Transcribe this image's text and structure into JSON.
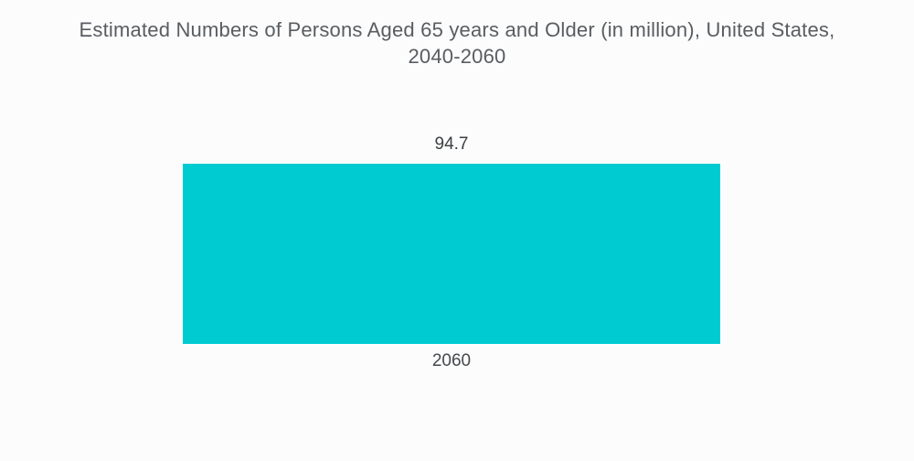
{
  "page": {
    "background": "#FCFCFC"
  },
  "chart": {
    "title_lines": [
      "Estimated Numbers of Persons Aged 65 years and Older (in million), United States,",
      "2040-2060"
    ]
  },
  "chart_data": {
    "type": "bar",
    "title": "Estimated Numbers of Persons Aged 65 years and Older (in million), United States, 2040-2060",
    "categories": [
      "2060"
    ],
    "values": [
      94.7
    ],
    "bar_color": "#00CBD1",
    "title_color": "#595D61",
    "value_label_color": "#3C4043",
    "category_label_color": "#45494D",
    "value_labels_position": "above-bar",
    "category_labels_position": "below-bar",
    "grid": false,
    "legend": false,
    "axes_shown": false
  }
}
